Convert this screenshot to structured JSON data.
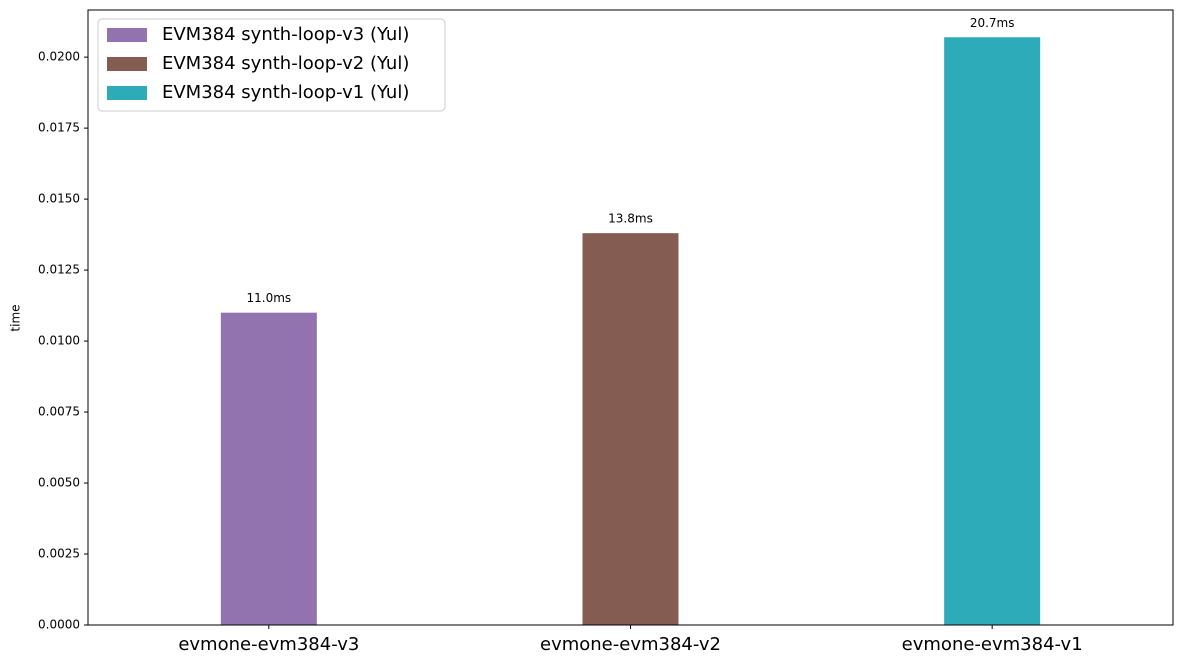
{
  "chart_data": {
    "type": "bar",
    "categories": [
      "evmone-evm384-v3",
      "evmone-evm384-v2",
      "evmone-evm384-v1"
    ],
    "y_label": "time",
    "series": [
      {
        "name": "EVM384 synth-loop-v3 (Yul)",
        "color": "#9372b0",
        "values": [
          0.011,
          null,
          null
        ],
        "value_labels": [
          "11.0ms",
          null,
          null
        ]
      },
      {
        "name": "EVM384 synth-loop-v2 (Yul)",
        "color": "#845c52",
        "values": [
          null,
          0.0138,
          null
        ],
        "value_labels": [
          null,
          "13.8ms",
          null
        ]
      },
      {
        "name": "EVM384 synth-loop-v1 (Yul)",
        "color": "#2eabb8",
        "values": [
          null,
          null,
          0.0207
        ],
        "value_labels": [
          null,
          null,
          "20.7ms"
        ]
      }
    ],
    "ylim": [
      0,
      0.02166
    ],
    "yticks": [
      {
        "value": 0,
        "label": "0.0000"
      },
      {
        "value": 0.0025,
        "label": "0.0025"
      },
      {
        "value": 0.005,
        "label": "0.0050"
      },
      {
        "value": 0.0075,
        "label": "0.0075"
      },
      {
        "value": 0.01,
        "label": "0.0100"
      },
      {
        "value": 0.0125,
        "label": "0.0125"
      },
      {
        "value": 0.015,
        "label": "0.0150"
      },
      {
        "value": 0.0175,
        "label": "0.0175"
      },
      {
        "value": 0.02,
        "label": "0.0200"
      }
    ],
    "legend": "upper left"
  }
}
